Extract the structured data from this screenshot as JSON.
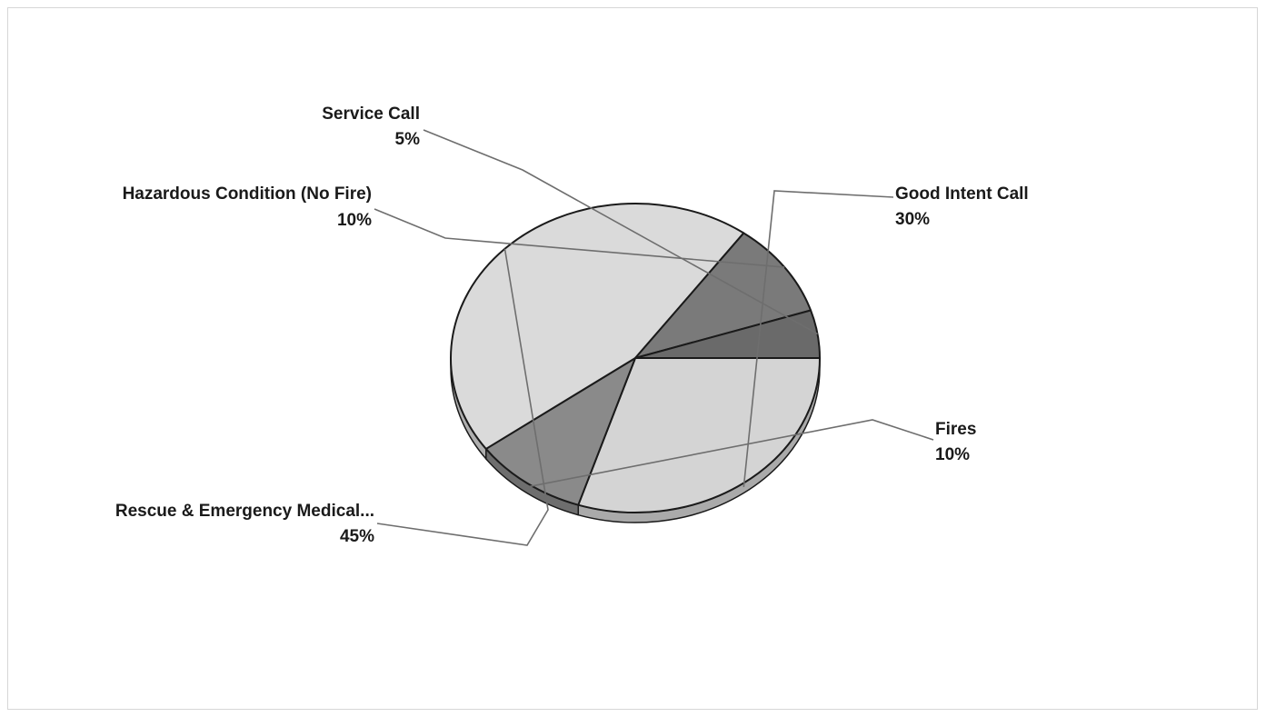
{
  "chart_data": {
    "type": "pie",
    "style": "3d",
    "slices": [
      {
        "label": "Good Intent Call",
        "value": 30,
        "value_label": "30%",
        "color": "#d4d4d4"
      },
      {
        "label": "Fires",
        "value": 10,
        "value_label": "10%",
        "color": "#8a8a8a"
      },
      {
        "label": "Rescue & Emergency Medical...",
        "value": 45,
        "value_label": "45%",
        "color": "#dadada"
      },
      {
        "label": "Hazardous Condition (No Fire)",
        "value": 10,
        "value_label": "10%",
        "color": "#7a7a7a"
      },
      {
        "label": "Service Call",
        "value": 5,
        "value_label": "5%",
        "color": "#6a6a6a"
      }
    ],
    "edge_color": "#1a1a1a",
    "leader_line_color": "#6e6e6e"
  }
}
